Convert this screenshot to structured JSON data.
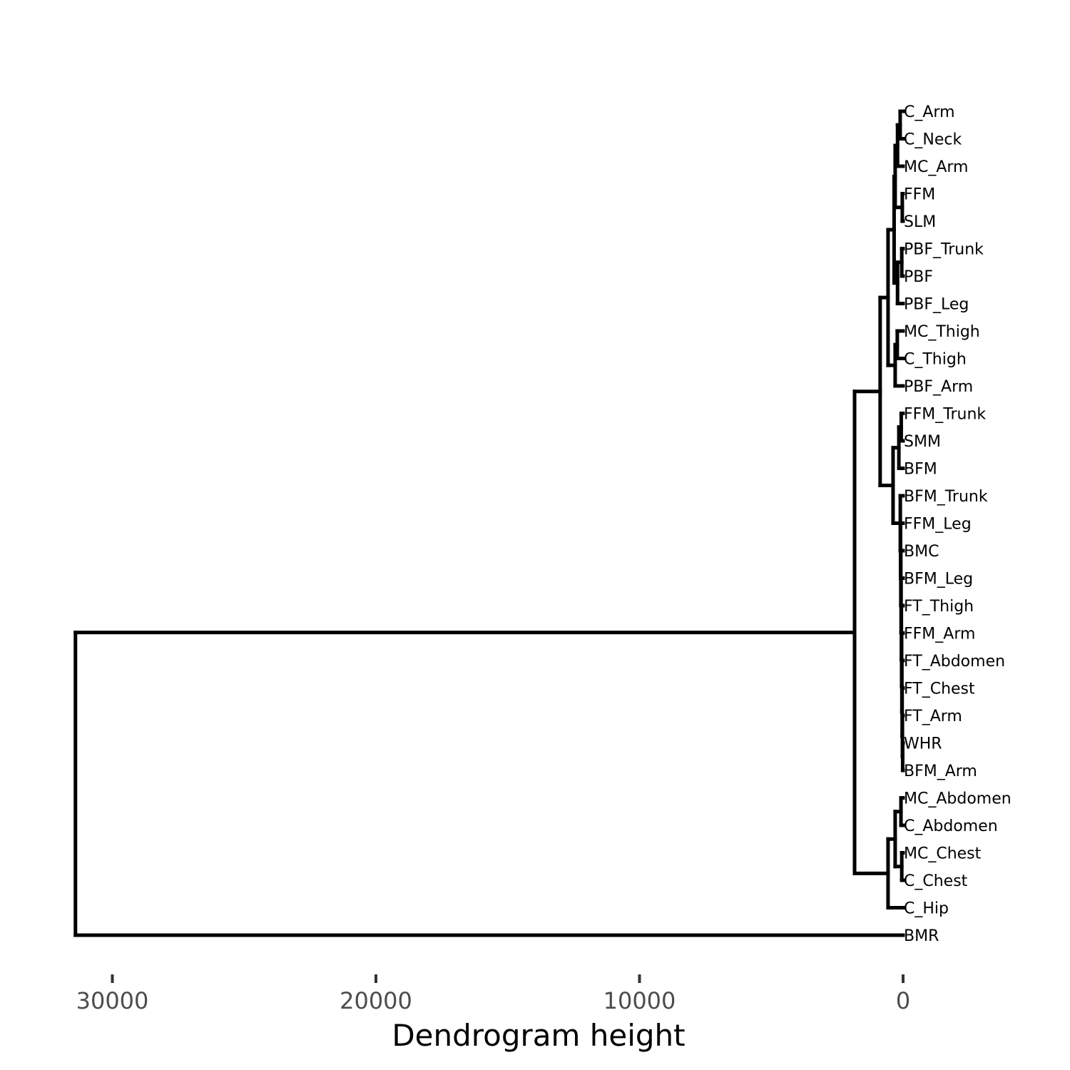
{
  "chart_data": {
    "type": "dendrogram",
    "orientation": "horizontal",
    "xlabel": "Dendrogram height",
    "x_reversed": true,
    "xlim": [
      31500,
      0
    ],
    "x_ticks": [
      {
        "value": 30000,
        "label": "30000"
      },
      {
        "value": 20000,
        "label": "20000"
      },
      {
        "value": 10000,
        "label": "10000"
      },
      {
        "value": 0,
        "label": "0"
      }
    ],
    "grid": false,
    "line_color": "#000000",
    "leaves": [
      "C_Arm",
      "C_Neck",
      "MC_Arm",
      "FFM",
      "SLM",
      "PBF_Trunk",
      "PBF",
      "PBF_Leg",
      "MC_Thigh",
      "C_Thigh",
      "PBF_Arm",
      "FFM_Trunk",
      "SMM",
      "BFM",
      "BFM_Trunk",
      "FFM_Leg",
      "BMC",
      "BFM_Leg",
      "FT_Thigh",
      "FFM_Arm",
      "FT_Abdomen",
      "FT_Chest",
      "FT_Arm",
      "WHR",
      "BFM_Arm",
      "MC_Abdomen",
      "C_Abdomen",
      "MC_Chest",
      "C_Chest",
      "C_Hip",
      "BMR"
    ],
    "merges": [
      {
        "left": "L:C_Arm",
        "right": "L:C_Neck",
        "height": 110
      },
      {
        "left": "M1",
        "right": "L:MC_Arm",
        "height": 210
      },
      {
        "left": "L:FFM",
        "right": "L:SLM",
        "height": 30
      },
      {
        "left": "M2",
        "right": "M3",
        "height": 300
      },
      {
        "left": "L:PBF_Trunk",
        "right": "L:PBF",
        "height": 50
      },
      {
        "left": "M5",
        "right": "L:PBF_Leg",
        "height": 210
      },
      {
        "left": "M4",
        "right": "M6",
        "height": 340
      },
      {
        "left": "L:MC_Thigh",
        "right": "L:C_Thigh",
        "height": 220
      },
      {
        "left": "M8",
        "right": "L:PBF_Arm",
        "height": 300
      },
      {
        "left": "M7",
        "right": "M9",
        "height": 570
      },
      {
        "left": "L:FFM_Trunk",
        "right": "L:SMM",
        "height": 70
      },
      {
        "left": "M11",
        "right": "L:BFM",
        "height": 160
      },
      {
        "left": "L:WHR",
        "right": "L:BFM_Arm",
        "height": 15
      },
      {
        "left": "L:FT_Arm",
        "right": "M13",
        "height": 25
      },
      {
        "left": "L:FT_Chest",
        "right": "M14",
        "height": 35
      },
      {
        "left": "L:FT_Abdomen",
        "right": "M15",
        "height": 45
      },
      {
        "left": "L:FFM_Arm",
        "right": "M16",
        "height": 55
      },
      {
        "left": "L:FT_Thigh",
        "right": "M17",
        "height": 65
      },
      {
        "left": "L:BFM_Leg",
        "right": "M18",
        "height": 75
      },
      {
        "left": "L:BMC",
        "right": "M19",
        "height": 85
      },
      {
        "left": "L:FFM_Leg",
        "right": "M20",
        "height": 95
      },
      {
        "left": "L:BFM_Trunk",
        "right": "M21",
        "height": 105
      },
      {
        "left": "M12",
        "right": "M22",
        "height": 380
      },
      {
        "left": "M10",
        "right": "M23",
        "height": 870
      },
      {
        "left": "L:MC_Abdomen",
        "right": "L:C_Abdomen",
        "height": 80
      },
      {
        "left": "L:MC_Chest",
        "right": "L:C_Chest",
        "height": 50
      },
      {
        "left": "M25",
        "right": "M26",
        "height": 300
      },
      {
        "left": "M27",
        "right": "L:C_Hip",
        "height": 570
      },
      {
        "left": "M24",
        "right": "M28",
        "height": 1840
      },
      {
        "left": "M29",
        "right": "L:BMR",
        "height": 31400
      }
    ]
  }
}
